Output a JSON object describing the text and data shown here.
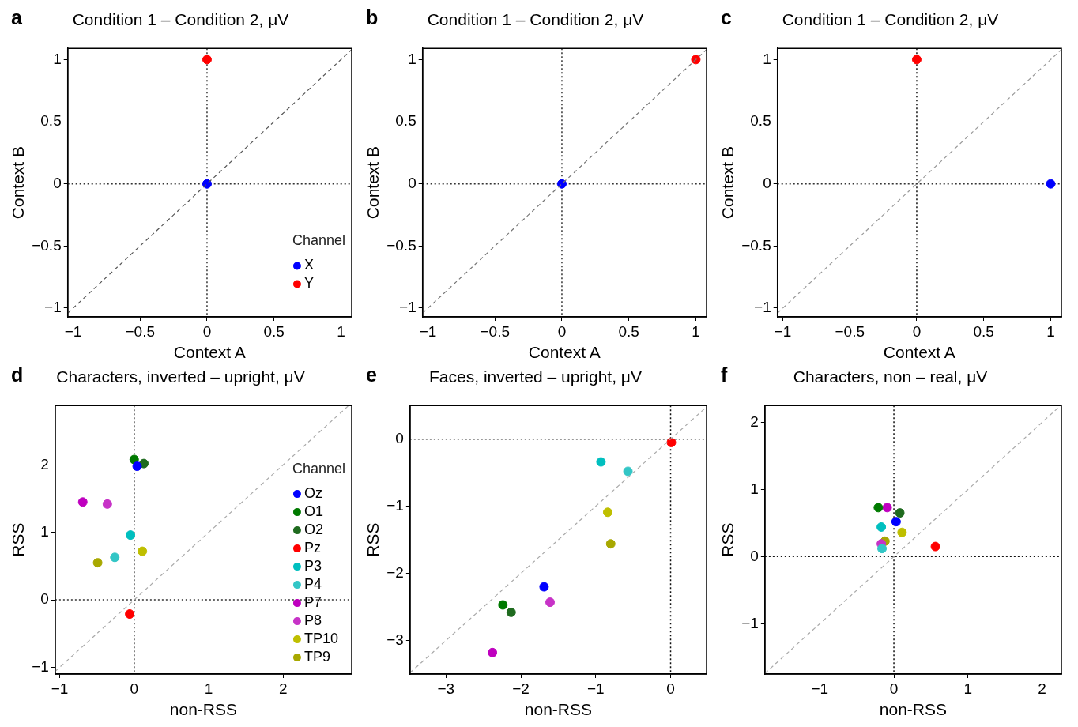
{
  "chart_data": [
    {
      "type": "scatter",
      "title": "Condition 1 – Condition 2, μV",
      "annotations": [
        "a"
      ],
      "xlabel": "Context A",
      "ylabel": "Context B",
      "xlim": [
        -1.04,
        1.08
      ],
      "ylim": [
        -1.07,
        1.09
      ],
      "xticks": [
        -1,
        -0.5,
        0,
        0.5,
        1
      ],
      "yticks": [
        -1,
        -0.5,
        0,
        0.5,
        1
      ],
      "marker": "circle",
      "legend": "bottom right",
      "legend_title": "Channel",
      "ref_lines": [
        {
          "axis": "x",
          "value": 0,
          "color": "#333333",
          "line_style": "dotted"
        },
        {
          "axis": "y",
          "value": 0,
          "color": "#333333",
          "line_style": "dotted"
        }
      ],
      "series": [
        {
          "type": "line",
          "marker": "none",
          "color": "#555555",
          "line_style": "dashed",
          "x": [
            -1.04,
            1.08
          ],
          "values": [
            -1.04,
            1.08
          ]
        },
        {
          "name": "X",
          "color": "#0000ff",
          "x": [
            0
          ],
          "values": [
            0
          ]
        },
        {
          "name": "Y",
          "color": "#ff0000",
          "x": [
            0
          ],
          "values": [
            1
          ]
        }
      ]
    },
    {
      "type": "scatter",
      "title": "Condition 1 – Condition 2, μV",
      "annotations": [
        "b"
      ],
      "xlabel": "Context A",
      "ylabel": "Context B",
      "xlim": [
        -1.04,
        1.08
      ],
      "ylim": [
        -1.07,
        1.09
      ],
      "xticks": [
        -1,
        -0.5,
        0,
        0.5,
        1
      ],
      "yticks": [
        -1,
        -0.5,
        0,
        0.5,
        1
      ],
      "marker": "circle",
      "ref_lines": [
        {
          "axis": "x",
          "value": 0,
          "color": "#333333",
          "line_style": "dotted"
        },
        {
          "axis": "y",
          "value": 0,
          "color": "#333333",
          "line_style": "dotted"
        }
      ],
      "series": [
        {
          "type": "line",
          "marker": "none",
          "color": "#777777",
          "line_style": "dashed",
          "x": [
            -1.04,
            1.08
          ],
          "values": [
            -1.04,
            1.08
          ]
        },
        {
          "color": "#0000ff",
          "x": [
            0
          ],
          "values": [
            0
          ]
        },
        {
          "color": "#ff0000",
          "x": [
            1
          ],
          "values": [
            1
          ]
        }
      ]
    },
    {
      "type": "scatter",
      "title": "Condition 1 – Condition 2, μV",
      "annotations": [
        "c"
      ],
      "xlabel": "Context A",
      "ylabel": "Context B",
      "xlim": [
        -1.04,
        1.08
      ],
      "ylim": [
        -1.07,
        1.09
      ],
      "xticks": [
        -1,
        -0.5,
        0,
        0.5,
        1
      ],
      "yticks": [
        -1,
        -0.5,
        0,
        0.5,
        1
      ],
      "marker": "circle",
      "ref_lines": [
        {
          "axis": "x",
          "value": 0,
          "color": "#111111",
          "line_style": "dotted"
        },
        {
          "axis": "y",
          "value": 0,
          "color": "#333333",
          "line_style": "dotted"
        }
      ],
      "series": [
        {
          "type": "line",
          "marker": "none",
          "color": "#999999",
          "line_style": "dashed",
          "x": [
            -1.04,
            1.08
          ],
          "values": [
            -1.04,
            1.08
          ]
        },
        {
          "color": "#0000ff",
          "x": [
            1
          ],
          "values": [
            0
          ]
        },
        {
          "color": "#ff0000",
          "x": [
            0
          ],
          "values": [
            1
          ]
        }
      ]
    },
    {
      "type": "scatter",
      "title": "Characters, inverted – upright, μV",
      "annotations": [
        "d"
      ],
      "xlabel": "non-RSS",
      "ylabel": "RSS",
      "xlim": [
        -1.06,
        2.92
      ],
      "ylim": [
        -1.1,
        2.88
      ],
      "xticks": [
        -1,
        0,
        1,
        2
      ],
      "yticks": [
        -1,
        0,
        1,
        2
      ],
      "marker": "circle",
      "legend": "right",
      "legend_title": "Channel",
      "ref_lines": [
        {
          "axis": "x",
          "value": 0,
          "color": "#111111",
          "line_style": "dotted"
        },
        {
          "axis": "y",
          "value": 0,
          "color": "#333333",
          "line_style": "dotted"
        }
      ],
      "series": [
        {
          "type": "line",
          "marker": "none",
          "color": "#aaaaaa",
          "line_style": "dashed",
          "x": [
            -1.06,
            2.88
          ],
          "values": [
            -1.06,
            2.88
          ]
        },
        {
          "name": "Oz",
          "color": "#0000ff",
          "x": [
            0.04
          ],
          "values": [
            1.98
          ]
        },
        {
          "name": "O1",
          "color": "#007a00",
          "x": [
            0.0
          ],
          "values": [
            2.08
          ]
        },
        {
          "name": "O2",
          "color": "#1f6b1f",
          "x": [
            0.13
          ],
          "values": [
            2.02
          ]
        },
        {
          "name": "Pz",
          "color": "#ff0000",
          "x": [
            -0.06
          ],
          "values": [
            -0.21
          ]
        },
        {
          "name": "P3",
          "color": "#00bfbf",
          "x": [
            -0.05
          ],
          "values": [
            0.96
          ]
        },
        {
          "name": "P4",
          "color": "#33c6c6",
          "x": [
            -0.26
          ],
          "values": [
            0.63
          ]
        },
        {
          "name": "P7",
          "color": "#bf00bf",
          "x": [
            -0.69
          ],
          "values": [
            1.45
          ]
        },
        {
          "name": "P8",
          "color": "#c733c7",
          "x": [
            -0.36
          ],
          "values": [
            1.42
          ]
        },
        {
          "name": "TP10",
          "color": "#bfbf00",
          "x": [
            0.11
          ],
          "values": [
            0.72
          ]
        },
        {
          "name": "TP9",
          "color": "#a8a800",
          "x": [
            -0.49
          ],
          "values": [
            0.55
          ]
        }
      ]
    },
    {
      "type": "scatter",
      "title": "Faces, inverted – upright, μV",
      "annotations": [
        "e"
      ],
      "xlabel": "non-RSS",
      "ylabel": "RSS",
      "xlim": [
        -3.48,
        0.48
      ],
      "ylim": [
        -3.5,
        0.5
      ],
      "xticks": [
        -3,
        -2,
        -1,
        0
      ],
      "yticks": [
        -3,
        -2,
        -1,
        0
      ],
      "marker": "circle",
      "ref_lines": [
        {
          "axis": "x",
          "value": 0,
          "color": "#111111",
          "line_style": "dotted"
        },
        {
          "axis": "y",
          "value": 0,
          "color": "#333333",
          "line_style": "dotted"
        }
      ],
      "series": [
        {
          "type": "line",
          "marker": "none",
          "color": "#aaaaaa",
          "line_style": "dashed",
          "x": [
            -3.48,
            0.48
          ],
          "values": [
            -3.48,
            0.48
          ]
        },
        {
          "color": "#0000ff",
          "x": [
            -1.69
          ],
          "values": [
            -2.2
          ]
        },
        {
          "color": "#007a00",
          "x": [
            -2.24
          ],
          "values": [
            -2.47
          ]
        },
        {
          "color": "#1f6b1f",
          "x": [
            -2.13
          ],
          "values": [
            -2.58
          ]
        },
        {
          "color": "#ff0000",
          "x": [
            0.01
          ],
          "values": [
            -0.05
          ]
        },
        {
          "color": "#00bfbf",
          "x": [
            -0.93
          ],
          "values": [
            -0.34
          ]
        },
        {
          "color": "#33c6c6",
          "x": [
            -0.57
          ],
          "values": [
            -0.48
          ]
        },
        {
          "color": "#bf00bf",
          "x": [
            -2.38
          ],
          "values": [
            -3.18
          ]
        },
        {
          "color": "#c733c7",
          "x": [
            -1.61
          ],
          "values": [
            -2.43
          ]
        },
        {
          "color": "#bfbf00",
          "x": [
            -0.84
          ],
          "values": [
            -1.09
          ]
        },
        {
          "color": "#a8a800",
          "x": [
            -0.8
          ],
          "values": [
            -1.56
          ]
        }
      ]
    },
    {
      "type": "scatter",
      "title": "Characters, non – real, μV",
      "annotations": [
        "f"
      ],
      "xlabel": "non-RSS",
      "ylabel": "RSS",
      "xlim": [
        -1.74,
        2.26
      ],
      "ylim": [
        -1.75,
        2.25
      ],
      "xticks": [
        -1,
        0,
        1,
        2
      ],
      "yticks": [
        -1,
        0,
        1,
        2
      ],
      "marker": "circle",
      "ref_lines": [
        {
          "axis": "x",
          "value": 0,
          "color": "#111111",
          "line_style": "dotted"
        },
        {
          "axis": "y",
          "value": 0,
          "color": "#111111",
          "line_style": "dotted"
        }
      ],
      "series": [
        {
          "type": "line",
          "marker": "none",
          "color": "#aaaaaa",
          "line_style": "dashed",
          "x": [
            -1.74,
            2.25
          ],
          "values": [
            -1.74,
            2.25
          ]
        },
        {
          "color": "#0000ff",
          "x": [
            0.03
          ],
          "values": [
            0.52
          ]
        },
        {
          "color": "#007a00",
          "x": [
            -0.21
          ],
          "values": [
            0.73
          ]
        },
        {
          "color": "#1f6b1f",
          "x": [
            0.08
          ],
          "values": [
            0.65
          ]
        },
        {
          "color": "#ff0000",
          "x": [
            0.56
          ],
          "values": [
            0.15
          ]
        },
        {
          "color": "#00bfbf",
          "x": [
            -0.17
          ],
          "values": [
            0.44
          ]
        },
        {
          "color": "#33c6c6",
          "x": [
            -0.16
          ],
          "values": [
            0.12
          ]
        },
        {
          "color": "#bf00bf",
          "x": [
            -0.09
          ],
          "values": [
            0.73
          ]
        },
        {
          "color": "#c733c7",
          "x": [
            -0.17
          ],
          "values": [
            0.19
          ]
        },
        {
          "color": "#bfbf00",
          "x": [
            0.11
          ],
          "values": [
            0.36
          ]
        },
        {
          "color": "#a8a800",
          "x": [
            -0.12
          ],
          "values": [
            0.23
          ]
        }
      ]
    }
  ]
}
